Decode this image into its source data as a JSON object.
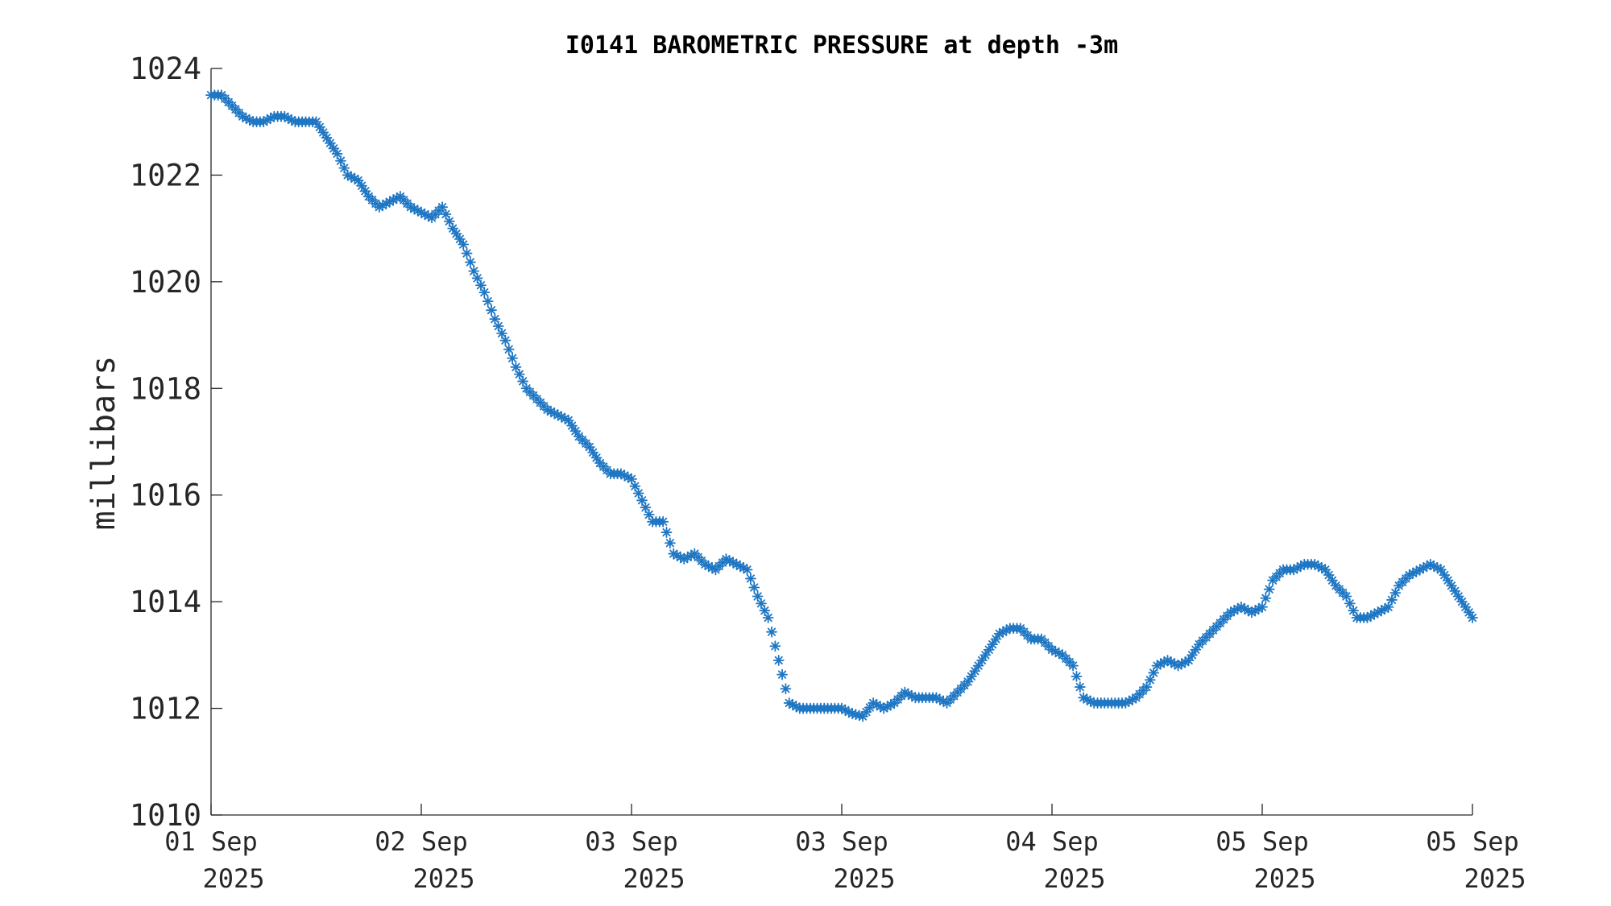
{
  "chart_data": {
    "type": "scatter",
    "title": "I0141 BAROMETRIC PRESSURE at depth -3m",
    "xlabel": "",
    "ylabel": "millibars",
    "xlim": [
      0,
      6
    ],
    "ylim": [
      1010,
      1024
    ],
    "yticks": [
      1010,
      1012,
      1014,
      1016,
      1018,
      1020,
      1022,
      1024
    ],
    "xticks": [
      {
        "pos": 0,
        "line1": "01 Sep",
        "line2": "2025"
      },
      {
        "pos": 1,
        "line1": "02 Sep",
        "line2": "2025"
      },
      {
        "pos": 2,
        "line1": "03 Sep",
        "line2": "2025"
      },
      {
        "pos": 3,
        "line1": "03 Sep",
        "line2": "2025"
      },
      {
        "pos": 4,
        "line1": "04 Sep",
        "line2": "2025"
      },
      {
        "pos": 5,
        "line1": "05 Sep",
        "line2": "2025"
      },
      {
        "pos": 6,
        "line1": "05 Sep",
        "line2": "2025"
      }
    ],
    "grid": false,
    "marker": "asterisk",
    "color": "#1f77c4",
    "series": [
      {
        "x": [
          0.0,
          0.05,
          0.1,
          0.15,
          0.2,
          0.25,
          0.3,
          0.35,
          0.4,
          0.45,
          0.5,
          0.55,
          0.6,
          0.65,
          0.7,
          0.75,
          0.8,
          0.85,
          0.9,
          0.95,
          1.0,
          1.05,
          1.1,
          1.15,
          1.2,
          1.25,
          1.3,
          1.35,
          1.4,
          1.45,
          1.5,
          1.55,
          1.6,
          1.65,
          1.7,
          1.75,
          1.8,
          1.85,
          1.9,
          1.95,
          2.0,
          2.05,
          2.1,
          2.15,
          2.2,
          2.25,
          2.3,
          2.35,
          2.4,
          2.45,
          2.5,
          2.55,
          2.6,
          2.65,
          2.7,
          2.75,
          2.8,
          2.85,
          2.9,
          2.95,
          3.0,
          3.05,
          3.1,
          3.15,
          3.2,
          3.25,
          3.3,
          3.35,
          3.4,
          3.45,
          3.5,
          3.55,
          3.6,
          3.65,
          3.7,
          3.75,
          3.8,
          3.85,
          3.9,
          3.95,
          4.0,
          4.05,
          4.1,
          4.15,
          4.2,
          4.25,
          4.3,
          4.35,
          4.4,
          4.45,
          4.5,
          4.55,
          4.6,
          4.65,
          4.7,
          4.75,
          4.8,
          4.85,
          4.9,
          4.95,
          5.0,
          5.05,
          5.1,
          5.15,
          5.2,
          5.25,
          5.3,
          5.35,
          5.4,
          5.45,
          5.5,
          5.55,
          5.6,
          5.65,
          5.7,
          5.75,
          5.8,
          5.85,
          5.9,
          5.95,
          6.0
        ],
        "y": [
          1023.5,
          1023.5,
          1023.3,
          1023.1,
          1023.0,
          1023.0,
          1023.1,
          1023.1,
          1023.0,
          1023.0,
          1023.0,
          1022.7,
          1022.4,
          1022.0,
          1021.9,
          1021.6,
          1021.4,
          1021.5,
          1021.6,
          1021.4,
          1021.3,
          1021.2,
          1021.4,
          1021.0,
          1020.7,
          1020.2,
          1019.8,
          1019.3,
          1018.9,
          1018.4,
          1018.0,
          1017.8,
          1017.6,
          1017.5,
          1017.4,
          1017.1,
          1016.9,
          1016.6,
          1016.4,
          1016.4,
          1016.3,
          1015.9,
          1015.5,
          1015.5,
          1014.9,
          1014.8,
          1014.9,
          1014.7,
          1014.6,
          1014.8,
          1014.7,
          1014.6,
          1014.1,
          1013.7,
          1012.9,
          1012.1,
          1012.0,
          1012.0,
          1012.0,
          1012.0,
          1012.0,
          1011.9,
          1011.85,
          1012.1,
          1012.0,
          1012.1,
          1012.3,
          1012.2,
          1012.2,
          1012.2,
          1012.1,
          1012.3,
          1012.5,
          1012.8,
          1013.1,
          1013.4,
          1013.5,
          1013.5,
          1013.3,
          1013.3,
          1013.1,
          1013.0,
          1012.8,
          1012.2,
          1012.1,
          1012.1,
          1012.1,
          1012.1,
          1012.2,
          1012.4,
          1012.8,
          1012.9,
          1012.8,
          1012.9,
          1013.2,
          1013.4,
          1013.6,
          1013.8,
          1013.9,
          1013.8,
          1013.9,
          1014.4,
          1014.6,
          1014.6,
          1014.7,
          1014.7,
          1014.6,
          1014.3,
          1014.1,
          1013.7,
          1013.7,
          1013.8,
          1013.9,
          1014.3,
          1014.5,
          1014.6,
          1014.7,
          1014.6,
          1014.3,
          1014.0,
          1013.7
        ]
      }
    ]
  }
}
